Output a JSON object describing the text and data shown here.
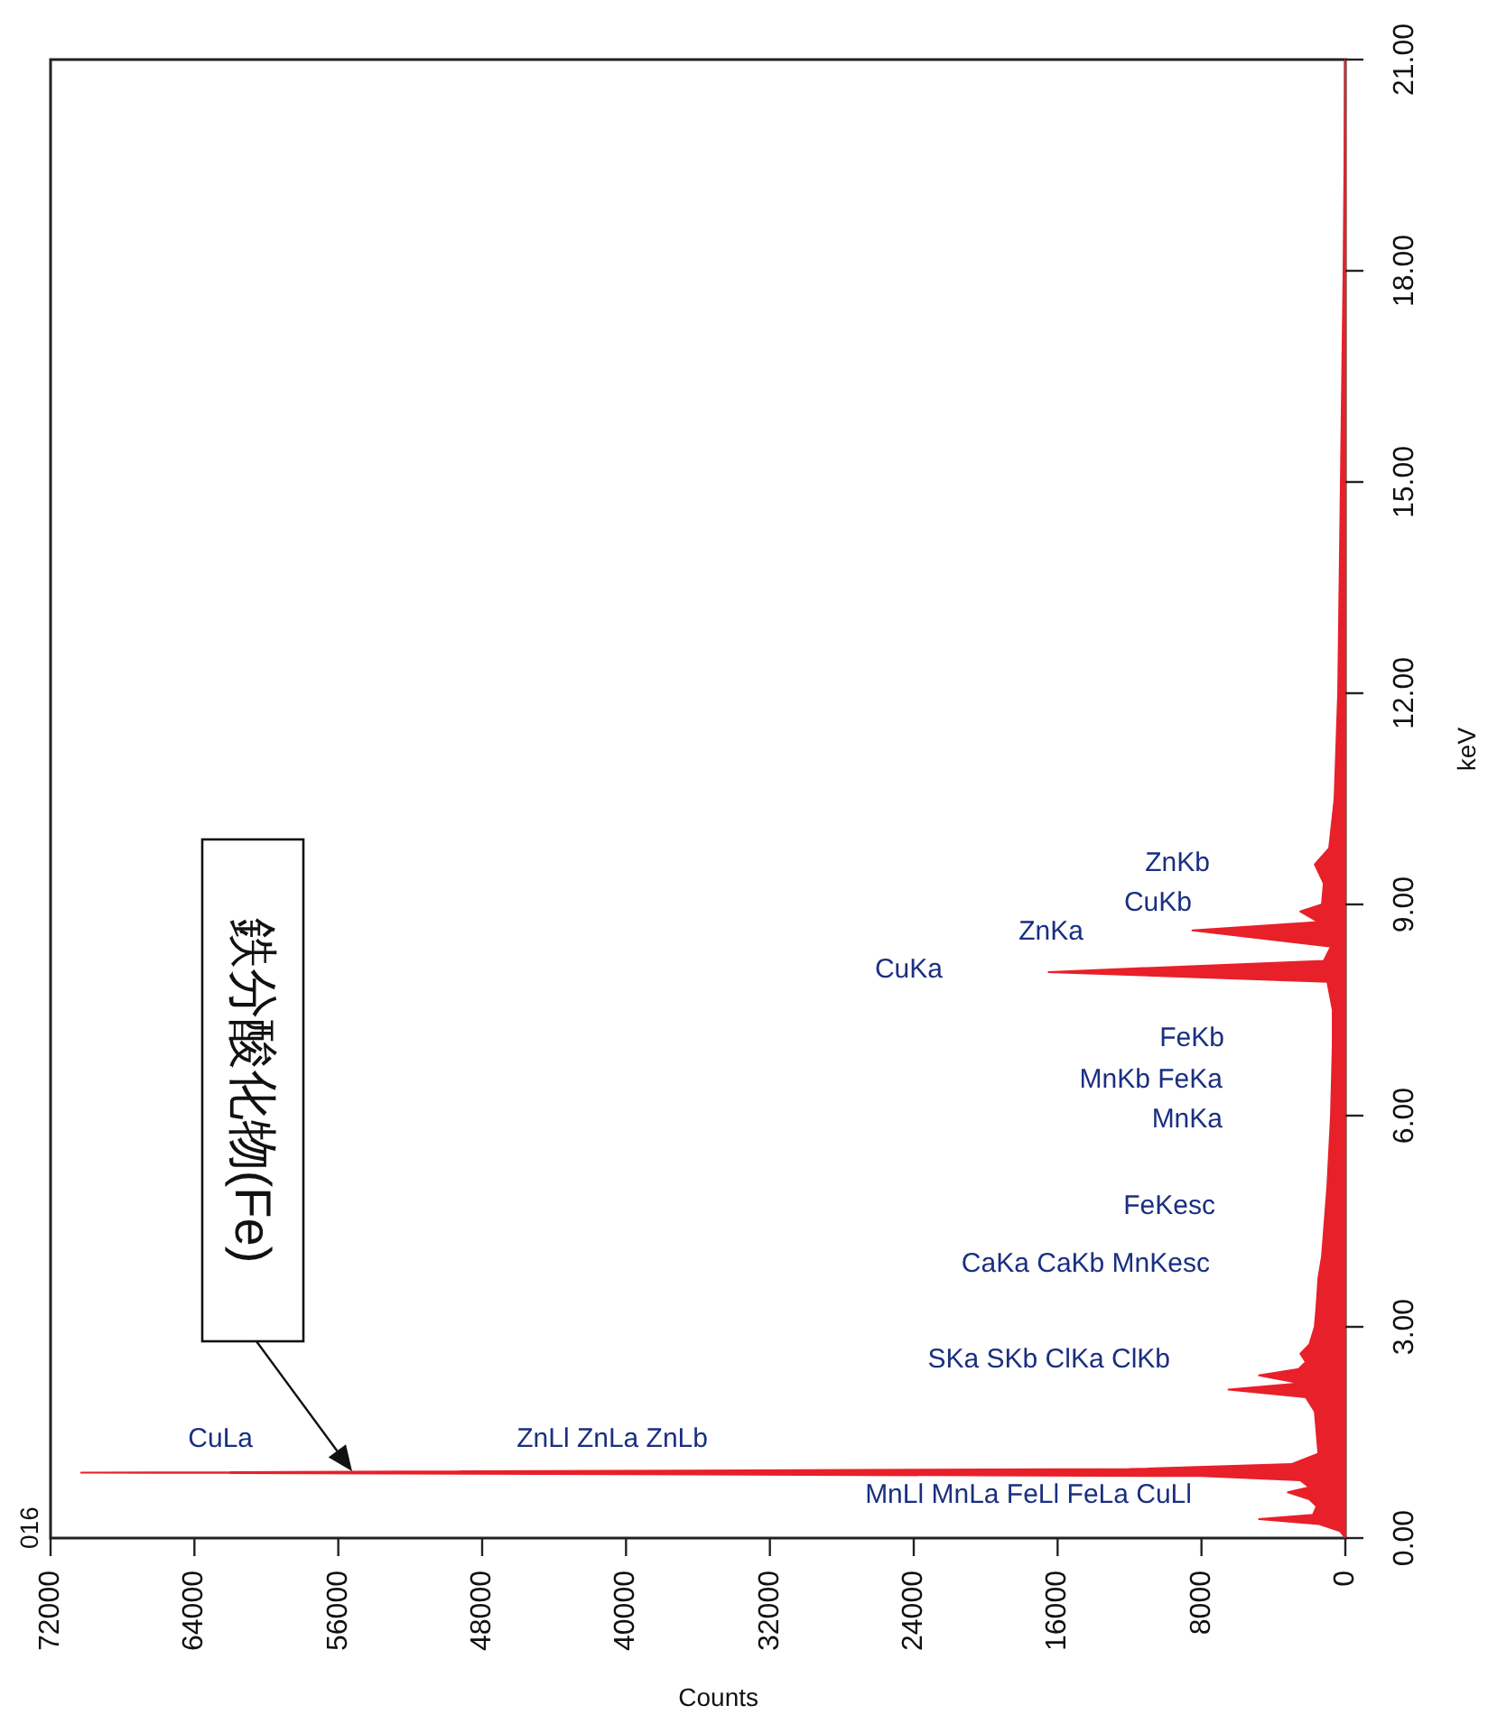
{
  "chart_data": {
    "type": "area",
    "orientation": "horizontal",
    "xlabel": "Counts",
    "ylabel": "keV",
    "color": "#e8202a",
    "x": [
      0.0,
      0.1,
      0.2,
      0.27,
      0.33,
      0.45,
      0.55,
      0.65,
      0.72,
      0.82,
      0.88,
      0.93,
      0.98,
      1.05,
      1.2,
      1.5,
      1.8,
      2.0,
      2.11,
      2.2,
      2.31,
      2.4,
      2.5,
      2.62,
      2.75,
      3.0,
      3.3,
      3.69,
      4.0,
      5.0,
      6.0,
      7.0,
      7.5,
      7.9,
      8.04,
      8.2,
      8.4,
      8.63,
      8.75,
      8.9,
      9.0,
      9.3,
      9.57,
      9.8,
      10.5,
      12,
      14,
      16,
      18,
      21
    ],
    "values": [
      0,
      300,
      1500,
      4800,
      1800,
      1600,
      2000,
      3200,
      2000,
      2500,
      8000,
      70300,
      12000,
      3000,
      1500,
      1600,
      1700,
      2200,
      6500,
      2500,
      4800,
      2600,
      2200,
      2500,
      2000,
      1700,
      1600,
      1500,
      1300,
      1000,
      800,
      700,
      700,
      1000,
      16500,
      1200,
      800,
      8500,
      1500,
      2500,
      1300,
      1200,
      1700,
      900,
      600,
      400,
      300,
      200,
      100,
      0
    ],
    "ylim": [
      0,
      21
    ],
    "yticks": [
      {
        "value": 0,
        "label": "0.00"
      },
      {
        "value": 3,
        "label": "3.00"
      },
      {
        "value": 6,
        "label": "6.00"
      },
      {
        "value": 9,
        "label": "9.00"
      },
      {
        "value": 12,
        "label": "12.00"
      },
      {
        "value": 15,
        "label": "15.00"
      },
      {
        "value": 18,
        "label": "18.00"
      },
      {
        "value": 21,
        "label": "21.00"
      }
    ],
    "xlim": [
      72000,
      0
    ],
    "xticks": [
      72000,
      64000,
      56000,
      48000,
      40000,
      32000,
      24000,
      16000,
      8000,
      0
    ],
    "annotations": [
      "ZnKb",
      "CuKb",
      "ZnKa",
      "CuKa",
      "FeKb",
      "MnKb FeKa",
      "MnKa",
      "FeKesc",
      "CaKa CaKb MnKesc",
      "SKa SKb ClKa ClKb",
      "CuLa",
      "ZnLl ZnLa ZnLb",
      "MnLl MnLa FeLl FeLa CuLl",
      "016",
      "鉄分酸化物(Fe)"
    ]
  }
}
